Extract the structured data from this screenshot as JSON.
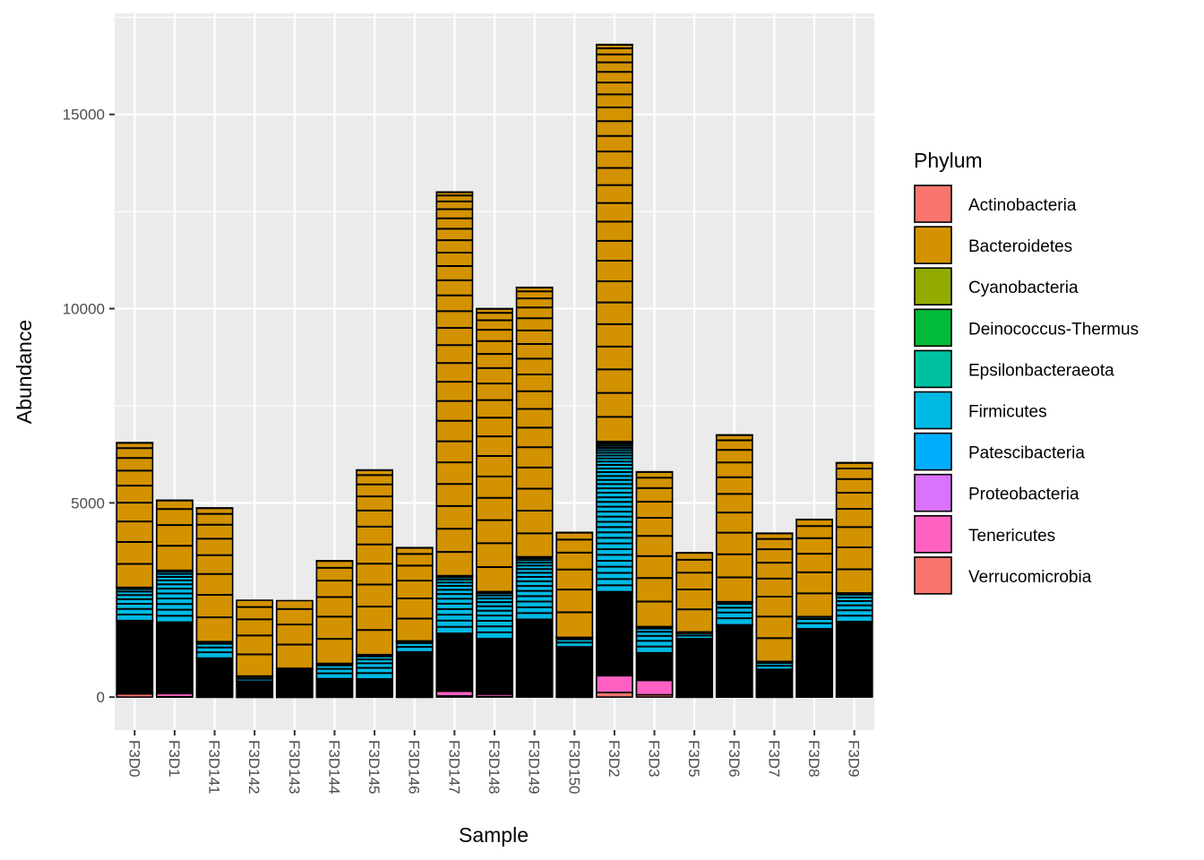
{
  "chart_data": {
    "type": "bar",
    "stacked": true,
    "xlabel": "Sample",
    "ylabel": "Abundance",
    "ylim": [
      -850,
      17600
    ],
    "yticks": [
      0,
      5000,
      10000,
      15000
    ],
    "ytick_labels": [
      "0",
      "5000",
      "10000",
      "15000"
    ],
    "grid": true,
    "legend_title": "Phylum",
    "legend_position": "right",
    "categories": [
      "F3D0",
      "F3D1",
      "F3D141",
      "F3D142",
      "F3D143",
      "F3D144",
      "F3D145",
      "F3D146",
      "F3D147",
      "F3D148",
      "F3D149",
      "F3D150",
      "F3D2",
      "F3D3",
      "F3D5",
      "F3D6",
      "F3D7",
      "F3D8",
      "F3D9"
    ],
    "series": [
      {
        "name": "Actinobacteria",
        "color": "#F8766D",
        "values": [
          5,
          3,
          2,
          0,
          0,
          2,
          3,
          2,
          8,
          5,
          6,
          2,
          10,
          5,
          2,
          4,
          2,
          3,
          4
        ]
      },
      {
        "name": "Bacteroidetes",
        "color": "#D39200",
        "values": [
          3720,
          1800,
          3440,
          1950,
          1740,
          2640,
          4750,
          2400,
          9870,
          7280,
          6930,
          2700,
          10210,
          3980,
          2040,
          4290,
          3300,
          2500,
          3350
        ]
      },
      {
        "name": "Cyanobacteria",
        "color": "#93AA00",
        "values": [
          2,
          1,
          1,
          0,
          0,
          1,
          2,
          1,
          4,
          3,
          3,
          1,
          5,
          2,
          1,
          2,
          1,
          1,
          2
        ]
      },
      {
        "name": "Deinococcus-Thermus",
        "color": "#00BA38",
        "values": [
          1,
          1,
          1,
          0,
          0,
          1,
          1,
          1,
          3,
          2,
          2,
          1,
          4,
          1,
          1,
          1,
          1,
          1,
          1
        ]
      },
      {
        "name": "Epsilonbacteraeota",
        "color": "#00C19F",
        "values": [
          2,
          2,
          1,
          1,
          1,
          1,
          2,
          1,
          6,
          4,
          4,
          1,
          8,
          2,
          1,
          2,
          1,
          1,
          2
        ]
      },
      {
        "name": "Firmicutes",
        "color": "#00B9E3",
        "values": [
          850,
          1330,
          420,
          130,
          40,
          390,
          620,
          280,
          1470,
          1200,
          1600,
          240,
          3850,
          670,
          170,
          590,
          200,
          310,
          730
        ]
      },
      {
        "name": "Patescibacteria",
        "color": "#00ADFA",
        "values": [
          1,
          1,
          0,
          0,
          0,
          0,
          1,
          0,
          3,
          2,
          2,
          0,
          4,
          1,
          0,
          1,
          0,
          0,
          1
        ]
      },
      {
        "name": "Proteobacteria",
        "color": "#DB72FB",
        "values": [
          1860,
          1840,
          980,
          400,
          690,
          460,
          450,
          1150,
          1490,
          1430,
          1970,
          1280,
          2160,
          710,
          1490,
          1830,
          700,
          1740,
          1910
        ]
      },
      {
        "name": "Tenericutes",
        "color": "#FF61C3",
        "values": [
          30,
          80,
          20,
          10,
          10,
          10,
          10,
          10,
          120,
          60,
          20,
          10,
          430,
          370,
          10,
          20,
          10,
          10,
          20
        ]
      },
      {
        "name": "Verrucomicrobia",
        "color": "#F8766D",
        "values": [
          80,
          10,
          5,
          2,
          2,
          5,
          8,
          4,
          30,
          15,
          12,
          5,
          120,
          60,
          5,
          10,
          5,
          10,
          15
        ]
      }
    ]
  }
}
